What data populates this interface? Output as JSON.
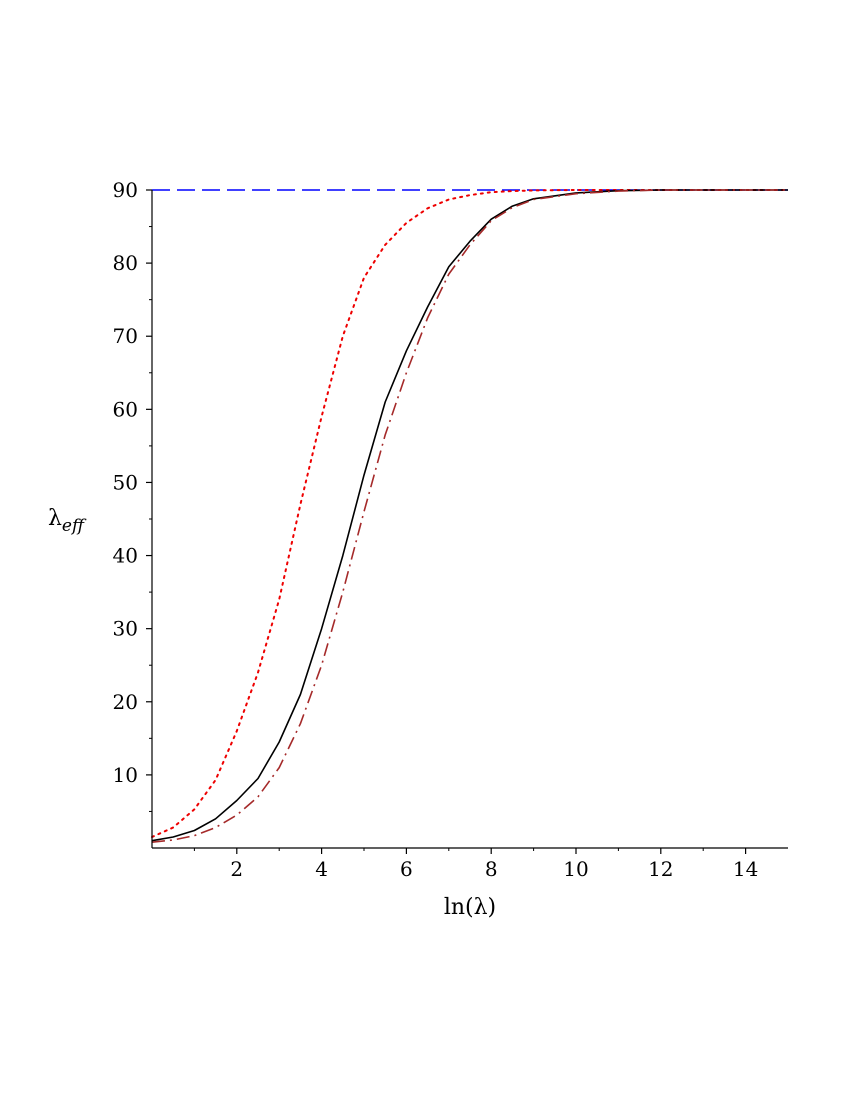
{
  "chart_data": {
    "type": "line",
    "xlabel": "ln(λ)",
    "ylabel": {
      "main": "λ",
      "sub": "eff"
    },
    "xlim": [
      0,
      15
    ],
    "ylim": [
      0,
      90
    ],
    "x_ticks": [
      2,
      4,
      6,
      8,
      10,
      12,
      14
    ],
    "x_tick_labels": [
      "2",
      "4",
      "6",
      "8",
      "10",
      "12",
      "14"
    ],
    "y_ticks": [
      10,
      20,
      30,
      40,
      50,
      60,
      70,
      80,
      90
    ],
    "y_tick_labels": [
      "10",
      "20",
      "30",
      "40",
      "50",
      "60",
      "70",
      "80",
      "90"
    ],
    "grid": false,
    "series": [
      {
        "color": "#0000ff",
        "style": "dashed",
        "x": [
          0,
          15
        ],
        "y": [
          90,
          90
        ]
      },
      {
        "color": "#ee0000",
        "style": "dotted",
        "x": [
          0,
          0.5,
          1,
          1.5,
          2,
          2.5,
          3,
          3.5,
          4,
          4.5,
          5,
          5.5,
          6,
          6.5,
          7,
          7.5,
          8,
          8.5,
          9,
          10,
          11,
          12,
          15
        ],
        "y": [
          1.5,
          2.8,
          5.3,
          9.3,
          16,
          24,
          34,
          47,
          59,
          70,
          78,
          82.5,
          85.5,
          87.5,
          88.7,
          89.3,
          89.7,
          89.85,
          89.95,
          90,
          90,
          90,
          90
        ]
      },
      {
        "color": "#000000",
        "style": "solid",
        "x": [
          0,
          0.5,
          1,
          1.5,
          2,
          2.5,
          3,
          3.5,
          4,
          4.5,
          5,
          5.5,
          6,
          6.5,
          7,
          7.5,
          8,
          8.5,
          9,
          10,
          11,
          12,
          15
        ],
        "y": [
          1,
          1.5,
          2.4,
          4,
          6.5,
          9.5,
          14.5,
          21,
          30,
          40,
          51,
          61,
          68,
          74,
          79.5,
          83,
          86,
          87.8,
          88.8,
          89.6,
          89.9,
          90,
          90
        ]
      },
      {
        "color": "#a52a2a",
        "style": "dashdot",
        "x": [
          0,
          0.5,
          1,
          1.5,
          2,
          2.5,
          3,
          3.5,
          4,
          4.5,
          5,
          5.5,
          6,
          6.5,
          7,
          7.5,
          8,
          8.5,
          9,
          10,
          11,
          12,
          15
        ],
        "y": [
          0.8,
          1.1,
          1.7,
          2.8,
          4.5,
          7,
          11,
          17,
          25,
          35,
          46,
          56.5,
          65,
          72.5,
          78.5,
          82.5,
          85.8,
          87.6,
          88.7,
          89.5,
          89.85,
          90,
          90
        ]
      }
    ]
  }
}
